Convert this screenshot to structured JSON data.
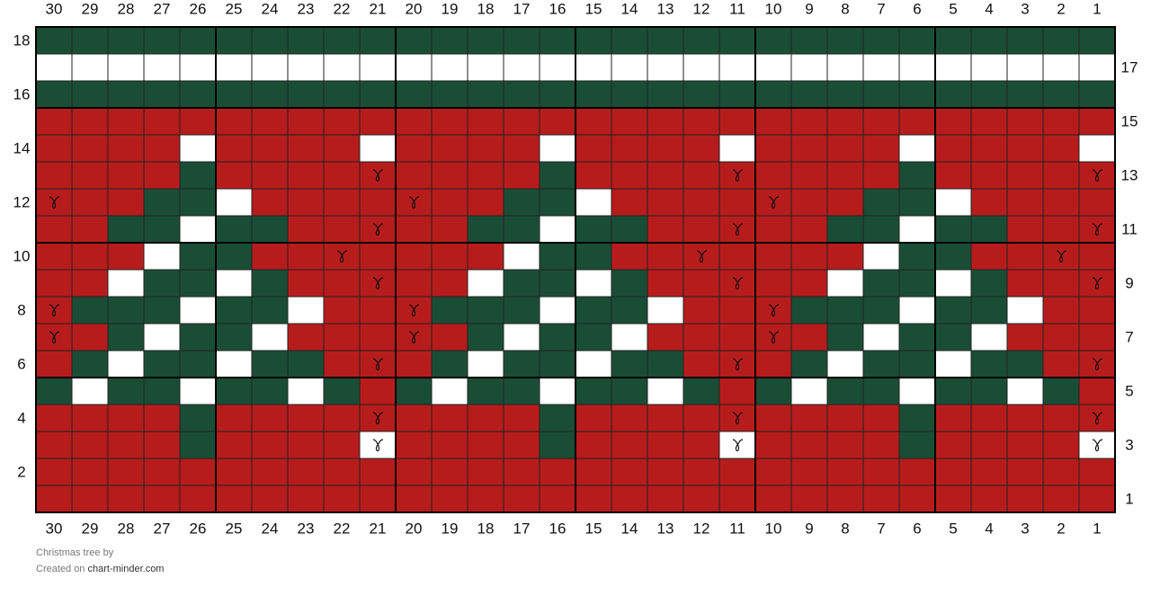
{
  "chart": {
    "columns": [
      30,
      29,
      28,
      27,
      26,
      25,
      24,
      23,
      22,
      21,
      20,
      19,
      18,
      17,
      16,
      15,
      14,
      13,
      12,
      11,
      10,
      9,
      8,
      7,
      6,
      5,
      4,
      3,
      2,
      1
    ],
    "palette": {
      "G": "#1a4d36",
      "W": "#ffffff",
      "R": "#b71c1c",
      "r": "#b71c1c",
      "w": "#ffffff"
    },
    "stitch_symbol_keys": [
      "r",
      "w"
    ],
    "rows": [
      {
        "number": 18,
        "cells": "GGGGGGGGGGGGGGGGGGGGGGGGGGGGGG"
      },
      {
        "number": 17,
        "cells": "WWWWWWWWWWWWWWWWWWWWWWWWWWWWWW"
      },
      {
        "number": 16,
        "cells": "GGGGGGGGGGGGGGGGGGGGGGGGGGGGGG"
      },
      {
        "number": 15,
        "cells": "RRRRRRRRRRRRRRRRRRRRRRRRRRRRRR"
      },
      {
        "number": 14,
        "cells": "RRRRWRRRRWRRRRWRRRRWRRRRWRRRRW"
      },
      {
        "number": 13,
        "cells": "RRRRGRRRRrRRRRGRRRRrRRRRGRRRRr"
      },
      {
        "number": 12,
        "cells": "rRRGGWRRRRrRRGGWRRRRrRRGGWRRRR"
      },
      {
        "number": 11,
        "cells": "RRGGWGGRRrRRGGWGGRRrRRGGWGGRRr"
      },
      {
        "number": 10,
        "cells": "RRRWGGRRrRRRRWGGRRrRRRRWGGRRrR"
      },
      {
        "number": 9,
        "cells": "RRWGGWGRRrRRWGGWGRRrRRWGGWGRRr"
      },
      {
        "number": 8,
        "cells": "rGGGWGGWRRrGGGWGGWRRrGGGWGGWRR"
      },
      {
        "number": 7,
        "cells": "rRGWGGWRRRrRGWGGWRRRrRGWGGWRRR"
      },
      {
        "number": 6,
        "cells": "RGWGGWGGRrRGWGGWGGRrRGWGGWGGRr"
      },
      {
        "number": 5,
        "cells": "GWGGWGGWGRGWGGWGGWGRGWGGWGGWGR"
      },
      {
        "number": 4,
        "cells": "RRRRGRRRRrRRRRGRRRRrRRRRGRRRRr"
      },
      {
        "number": 3,
        "cells": "RRRRGRRRRwRRRRGRRRRwRRRRGRRRRw"
      },
      {
        "number": 2,
        "cells": "RRRRRRRRRRRRRRRRRRRRRRRRRRRRRR"
      },
      {
        "number": 1,
        "cells": "RRRRRRRRRRRRRRRRRRRRRRRRRRRRRR"
      }
    ]
  },
  "footer": {
    "title": "Christmas tree",
    "by": "by",
    "created": "Created on",
    "site": "chart-minder.com"
  }
}
